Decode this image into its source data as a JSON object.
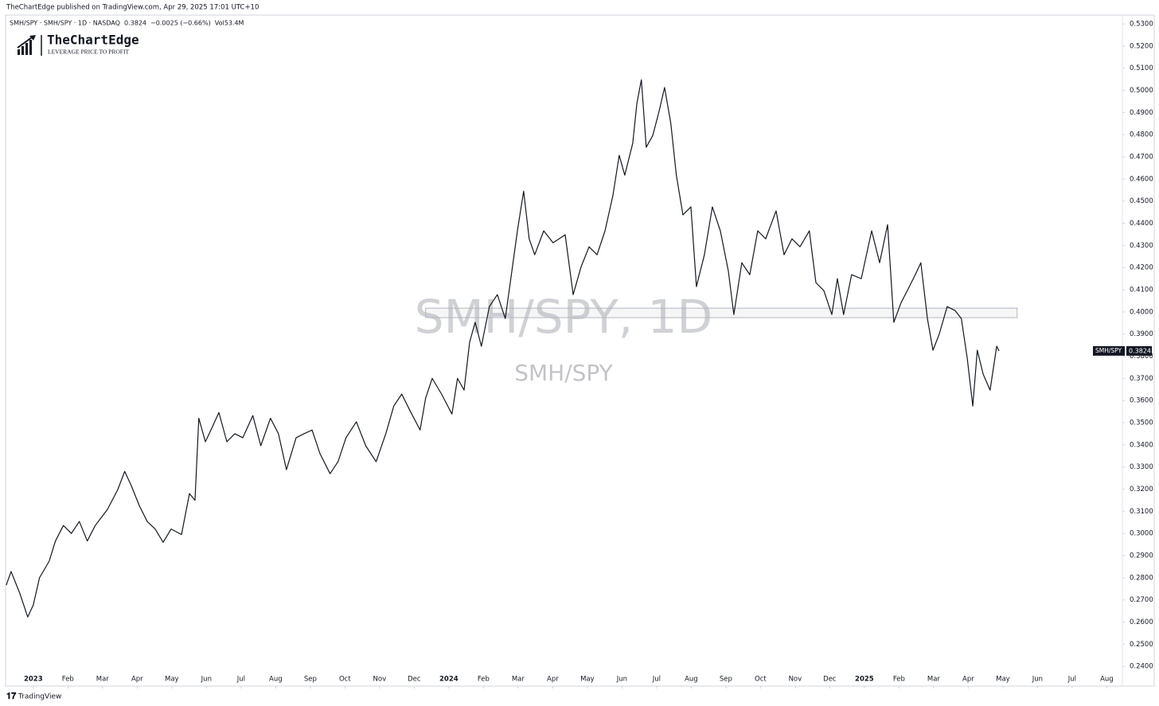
{
  "header": {
    "published": "TheChartEdge published on TradingView.com, Apr 29, 2025 17:01 UTC+10",
    "legend": "SMH/SPY · SMH/SPY · 1D · NASDAQ  0.3824  −0.0025 (−0.66%)  Vol53.4M"
  },
  "logo": {
    "name": "TheChartEdge",
    "tagline": "LEVERAGE PRICE TO PROFIT"
  },
  "watermark": {
    "title": "SMH/SPY, 1D",
    "subtitle": "SMH/SPY"
  },
  "price_tag": {
    "name": "SMH/SPY",
    "value": "0.3824"
  },
  "footer": {
    "brand": "TradingView"
  },
  "chart_data": {
    "type": "line",
    "xlim": [
      -0.8,
      31.45
    ],
    "ylim": [
      0.2372,
      0.5372
    ],
    "xticks": [
      {
        "value": 0,
        "label": "2023"
      },
      {
        "value": 1,
        "label": "Feb"
      },
      {
        "value": 2,
        "label": "Mar"
      },
      {
        "value": 3,
        "label": "Apr"
      },
      {
        "value": 4,
        "label": "May"
      },
      {
        "value": 5,
        "label": "Jun"
      },
      {
        "value": 6,
        "label": "Jul"
      },
      {
        "value": 7,
        "label": "Aug"
      },
      {
        "value": 8,
        "label": "Sep"
      },
      {
        "value": 9,
        "label": "Oct"
      },
      {
        "value": 10,
        "label": "Nov"
      },
      {
        "value": 11,
        "label": "Dec"
      },
      {
        "value": 12,
        "label": "2024"
      },
      {
        "value": 13,
        "label": "Feb"
      },
      {
        "value": 14,
        "label": "Mar"
      },
      {
        "value": 15,
        "label": "Apr"
      },
      {
        "value": 16,
        "label": "May"
      },
      {
        "value": 17,
        "label": "Jun"
      },
      {
        "value": 18,
        "label": "Jul"
      },
      {
        "value": 19,
        "label": "Aug"
      },
      {
        "value": 20,
        "label": "Sep"
      },
      {
        "value": 21,
        "label": "Oct"
      },
      {
        "value": 22,
        "label": "Nov"
      },
      {
        "value": 23,
        "label": "Dec"
      },
      {
        "value": 24,
        "label": "2025"
      },
      {
        "value": 25,
        "label": "Feb"
      },
      {
        "value": 26,
        "label": "Mar"
      },
      {
        "value": 27,
        "label": "Apr"
      },
      {
        "value": 28,
        "label": "May"
      },
      {
        "value": 29,
        "label": "Jun"
      },
      {
        "value": 30,
        "label": "Jul"
      },
      {
        "value": 31,
        "label": "Aug"
      }
    ],
    "yticks": [
      {
        "value": 0.24,
        "label": "0.2400"
      },
      {
        "value": 0.25,
        "label": "0.2500"
      },
      {
        "value": 0.26,
        "label": "0.2600"
      },
      {
        "value": 0.27,
        "label": "0.2700"
      },
      {
        "value": 0.28,
        "label": "0.2800"
      },
      {
        "value": 0.29,
        "label": "0.2900"
      },
      {
        "value": 0.3,
        "label": "0.3000"
      },
      {
        "value": 0.31,
        "label": "0.3100"
      },
      {
        "value": 0.32,
        "label": "0.3200"
      },
      {
        "value": 0.33,
        "label": "0.3300"
      },
      {
        "value": 0.34,
        "label": "0.3400"
      },
      {
        "value": 0.35,
        "label": "0.3500"
      },
      {
        "value": 0.36,
        "label": "0.3600"
      },
      {
        "value": 0.37,
        "label": "0.3700"
      },
      {
        "value": 0.38,
        "label": "0.3800"
      },
      {
        "value": 0.39,
        "label": "0.3900"
      },
      {
        "value": 0.4,
        "label": "0.4000"
      },
      {
        "value": 0.41,
        "label": "0.4100"
      },
      {
        "value": 0.42,
        "label": "0.4200"
      },
      {
        "value": 0.43,
        "label": "0.4300"
      },
      {
        "value": 0.44,
        "label": "0.4400"
      },
      {
        "value": 0.45,
        "label": "0.4500"
      },
      {
        "value": 0.46,
        "label": "0.4600"
      },
      {
        "value": 0.47,
        "label": "0.4700"
      },
      {
        "value": 0.48,
        "label": "0.4800"
      },
      {
        "value": 0.49,
        "label": "0.4900"
      },
      {
        "value": 0.5,
        "label": "0.5000"
      },
      {
        "value": 0.51,
        "label": "0.5100"
      },
      {
        "value": 0.52,
        "label": "0.5200"
      },
      {
        "value": 0.53,
        "label": "0.5300"
      }
    ],
    "zone": {
      "x": [
        11.33,
        28.41
      ],
      "y": [
        0.3974,
        0.4017
      ],
      "color": "#b2b5be"
    },
    "series": [
      {
        "name": "SMH/SPY",
        "color": "#131722",
        "x": [
          -0.78,
          -0.64,
          -0.39,
          -0.16,
          0,
          0.18,
          0.46,
          0.64,
          0.87,
          1.1,
          1.33,
          1.56,
          1.79,
          2.14,
          2.44,
          2.64,
          2.83,
          3.06,
          3.29,
          3.52,
          3.75,
          3.98,
          4.28,
          4.51,
          4.67,
          4.78,
          4.97,
          5.13,
          5.36,
          5.59,
          5.82,
          6.05,
          6.34,
          6.57,
          6.85,
          7.08,
          7.31,
          7.59,
          7.82,
          8.05,
          8.28,
          8.57,
          8.8,
          9.03,
          9.33,
          9.6,
          9.9,
          10.18,
          10.41,
          10.64,
          10.87,
          11.17,
          11.33,
          11.52,
          11.79,
          12.09,
          12.25,
          12.44,
          12.6,
          12.76,
          12.94,
          13.17,
          13.4,
          13.63,
          13.79,
          13.98,
          14.16,
          14.32,
          14.48,
          14.74,
          15.01,
          15.36,
          15.59,
          15.82,
          16.05,
          16.28,
          16.51,
          16.74,
          16.92,
          17.08,
          17.31,
          17.43,
          17.56,
          17.7,
          17.89,
          18.07,
          18.23,
          18.41,
          18.57,
          18.76,
          18.99,
          19.15,
          19.38,
          19.61,
          19.84,
          20.07,
          20.23,
          20.46,
          20.69,
          20.92,
          21.15,
          21.45,
          21.68,
          21.91,
          22.14,
          22.41,
          22.6,
          22.83,
          23.06,
          23.22,
          23.4,
          23.63,
          23.91,
          24.21,
          24.44,
          24.67,
          24.85,
          25.06,
          25.24,
          25.47,
          25.63,
          25.82,
          25.98,
          26.16,
          26.39,
          26.62,
          26.8,
          26.97,
          27.13,
          27.26,
          27.43,
          27.63,
          27.82,
          27.89
        ],
        "values": [
          0.2767,
          0.2828,
          0.273,
          0.2623,
          0.2677,
          0.28,
          0.2875,
          0.2966,
          0.3036,
          0.3,
          0.3054,
          0.2966,
          0.3036,
          0.3108,
          0.3198,
          0.328,
          0.3216,
          0.3126,
          0.3054,
          0.302,
          0.296,
          0.302,
          0.2995,
          0.318,
          0.315,
          0.352,
          0.3414,
          0.3467,
          0.3546,
          0.3414,
          0.345,
          0.3432,
          0.3532,
          0.3396,
          0.352,
          0.345,
          0.3288,
          0.3432,
          0.345,
          0.3467,
          0.336,
          0.327,
          0.3324,
          0.3432,
          0.3504,
          0.3396,
          0.3324,
          0.345,
          0.3575,
          0.3629,
          0.3557,
          0.3467,
          0.3611,
          0.37,
          0.3629,
          0.3539,
          0.37,
          0.3647,
          0.3863,
          0.3953,
          0.3845,
          0.4024,
          0.4078,
          0.397,
          0.415,
          0.4366,
          0.4545,
          0.433,
          0.4258,
          0.4366,
          0.4312,
          0.4348,
          0.4078,
          0.4204,
          0.4294,
          0.4258,
          0.4366,
          0.4527,
          0.4707,
          0.4617,
          0.4761,
          0.4941,
          0.5048,
          0.4743,
          0.4797,
          0.4905,
          0.5013,
          0.4851,
          0.4617,
          0.4438,
          0.4474,
          0.4114,
          0.4258,
          0.4474,
          0.4366,
          0.4186,
          0.3988,
          0.4222,
          0.4168,
          0.4366,
          0.433,
          0.4456,
          0.4258,
          0.433,
          0.4294,
          0.4366,
          0.4132,
          0.4096,
          0.3988,
          0.415,
          0.3988,
          0.4168,
          0.415,
          0.4366,
          0.4222,
          0.4394,
          0.3953,
          0.4042,
          0.4096,
          0.4168,
          0.4222,
          0.397,
          0.3827,
          0.3899,
          0.4024,
          0.4006,
          0.397,
          0.3791,
          0.3575,
          0.3827,
          0.3719,
          0.3647,
          0.3845,
          0.3824
        ]
      }
    ]
  }
}
